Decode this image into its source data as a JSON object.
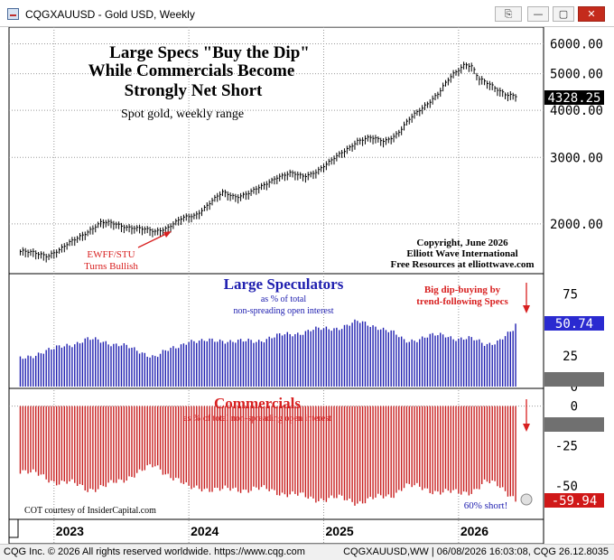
{
  "window": {
    "title": "CQGXAUUSD - Gold USD, Weekly",
    "buttons": {
      "link": "⎘",
      "minimize": "—",
      "restore": "▢",
      "maximize": "□",
      "close": "✕"
    }
  },
  "statusbar": {
    "left": "CQG Inc. © 2026 All rights reserved worldwide. https://www.cqg.com",
    "right": "CQGXAUUSD,WW | 06/08/2026 16:03:08, CQG 26.12.8035"
  },
  "colors": {
    "price": "#000000",
    "speculators": "#2020b0",
    "commercials": "#c81e1e",
    "last_tag_specs": "#2a2ad0",
    "last_tag_comm": "#d01818",
    "grid": "#999999"
  },
  "chart_data": [
    {
      "type": "line",
      "title": "Large Specs \"Buy the Dip\"",
      "title_line2": "While Commercials Become",
      "title_line3": "Strongly Net Short",
      "subtitle": "Spot gold, weekly range",
      "annotation_bullish_line1": "EWFF/STU",
      "annotation_bullish_line2": "Turns Bullish",
      "copyright_line1": "Copyright, June 2026",
      "copyright_line2": "Elliott Wave International",
      "copyright_line3": "Free Resources at elliottwave.com",
      "y_ticks": [
        "6000.00",
        "5000.00",
        "4000.00",
        "3000.00",
        "2000.00"
      ],
      "y_tick_values": [
        6000,
        5000,
        4000,
        3000,
        2000
      ],
      "last_value": "4328.25",
      "x": [
        2022.75,
        2022.85,
        2022.95,
        2023.05,
        2023.15,
        2023.25,
        2023.35,
        2023.45,
        2023.55,
        2023.65,
        2023.75,
        2023.85,
        2023.95,
        2024.05,
        2024.15,
        2024.25,
        2024.35,
        2024.45,
        2024.55,
        2024.65,
        2024.75,
        2024.85,
        2024.95,
        2025.05,
        2025.15,
        2025.25,
        2025.35,
        2025.45,
        2025.55,
        2025.65,
        2025.75,
        2025.85,
        2025.95,
        2026.0,
        2026.05,
        2026.1,
        2026.15,
        2026.2,
        2026.25,
        2026.3,
        2026.35,
        2026.42
      ],
      "y": [
        1680,
        1660,
        1640,
        1700,
        1800,
        1900,
        2000,
        1990,
        1950,
        1920,
        1900,
        1950,
        2050,
        2100,
        2250,
        2400,
        2350,
        2400,
        2500,
        2650,
        2700,
        2650,
        2750,
        2900,
        3100,
        3300,
        3350,
        3300,
        3450,
        3800,
        4100,
        4400,
        4900,
        5100,
        5300,
        5200,
        4800,
        4700,
        4600,
        4500,
        4400,
        4328
      ],
      "ylim": [
        1500,
        6500
      ],
      "scale": "log"
    },
    {
      "type": "bar",
      "title": "Large Speculators",
      "subtitle_line1": "as % of total",
      "subtitle_line2": "non-spreading open interest",
      "annotation_line1": "Big dip-buying by",
      "annotation_line2": "trend-following Specs",
      "y_ticks": [
        "75",
        "50",
        "25",
        "0"
      ],
      "y_tick_values": [
        75,
        50,
        25,
        0
      ],
      "last_value": "50.74",
      "x": [
        2022.75,
        2022.9,
        2023.0,
        2023.1,
        2023.25,
        2023.4,
        2023.5,
        2023.6,
        2023.75,
        2023.9,
        2024.0,
        2024.1,
        2024.25,
        2024.4,
        2024.5,
        2024.6,
        2024.75,
        2024.9,
        2025.0,
        2025.1,
        2025.25,
        2025.4,
        2025.5,
        2025.6,
        2025.75,
        2025.9,
        2026.0,
        2026.1,
        2026.2,
        2026.3,
        2026.4,
        2026.42
      ],
      "y": [
        22,
        28,
        30,
        34,
        38,
        36,
        34,
        29,
        25,
        31,
        38,
        36,
        38,
        36,
        37,
        40,
        42,
        46,
        46,
        48,
        52,
        49,
        44,
        37,
        40,
        42,
        39,
        38,
        35,
        37,
        44,
        51
      ],
      "ylim": [
        0,
        90
      ]
    },
    {
      "type": "bar",
      "title": "Commercials",
      "subtitle": "as % of total non-spreading open interest",
      "credit": "COT courtesy of InsiderCapital.com",
      "annotation": "60% short!",
      "y_ticks": [
        "0",
        "-25",
        "-50"
      ],
      "y_tick_values": [
        0,
        -25,
        -50
      ],
      "last_value": "-59.94",
      "x": [
        2022.75,
        2022.9,
        2023.0,
        2023.1,
        2023.25,
        2023.4,
        2023.5,
        2023.6,
        2023.75,
        2023.9,
        2024.0,
        2024.1,
        2024.25,
        2024.4,
        2024.5,
        2024.6,
        2024.75,
        2024.9,
        2025.0,
        2025.1,
        2025.25,
        2025.4,
        2025.5,
        2025.6,
        2025.75,
        2025.9,
        2026.0,
        2026.1,
        2026.2,
        2026.3,
        2026.4,
        2026.42
      ],
      "y": [
        -40,
        -44,
        -47,
        -48,
        -52,
        -50,
        -47,
        -42,
        -38,
        -45,
        -52,
        -51,
        -53,
        -52,
        -52,
        -53,
        -55,
        -58,
        -58,
        -58,
        -60,
        -58,
        -56,
        -50,
        -52,
        -54,
        -55,
        -53,
        -48,
        -50,
        -56,
        -60
      ],
      "ylim": [
        -70,
        10
      ]
    }
  ],
  "x_axis": {
    "labels": [
      "2023",
      "2024",
      "2025",
      "2026"
    ],
    "values": [
      2023,
      2024,
      2025,
      2026
    ],
    "range": [
      2022.68,
      2026.55
    ]
  }
}
